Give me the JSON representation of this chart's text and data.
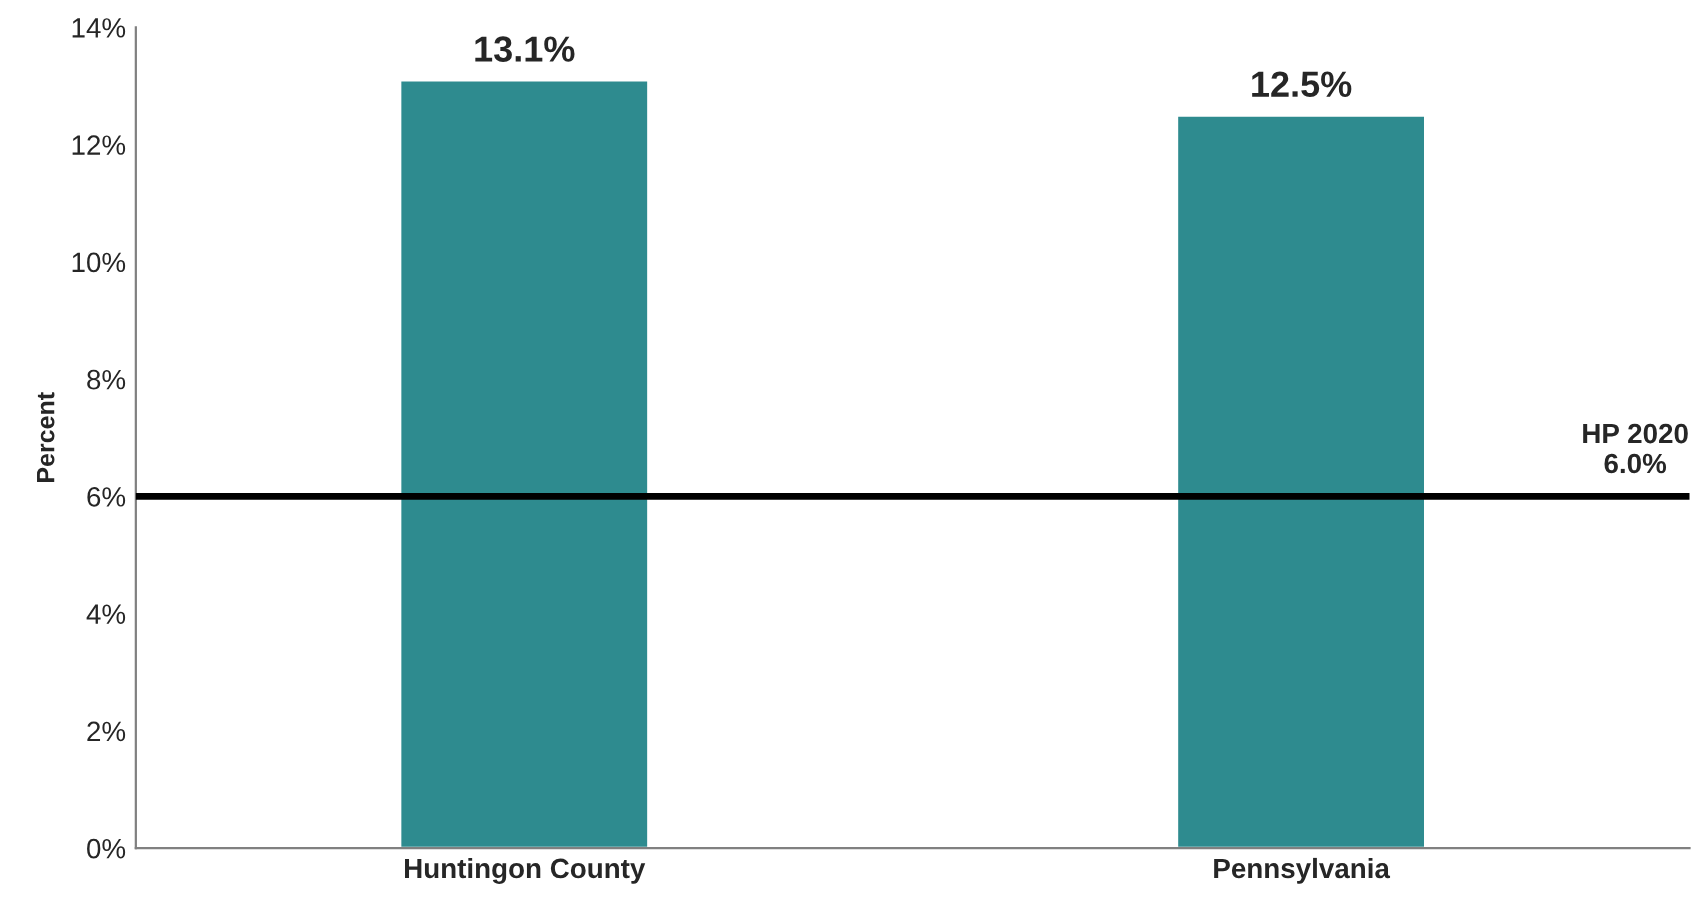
{
  "chart_data": {
    "type": "bar",
    "ylabel": "Percent",
    "categories": [
      "Huntingon County",
      "Pennsylvania"
    ],
    "values": [
      13.1,
      12.5
    ],
    "color": "#2e8b8f",
    "value_labels": [
      "13.1%",
      "12.5%"
    ],
    "ylim": [
      0,
      14
    ],
    "yticks": [
      {
        "value": 0,
        "label": "0%"
      },
      {
        "value": 2,
        "label": "2%"
      },
      {
        "value": 4,
        "label": "4%"
      },
      {
        "value": 6,
        "label": "6%"
      },
      {
        "value": 8,
        "label": "8%"
      },
      {
        "value": 10,
        "label": "10%"
      },
      {
        "value": 12,
        "label": "12%"
      },
      {
        "value": 14,
        "label": "14%"
      }
    ],
    "ref_lines": [
      {
        "axis": "y",
        "value": 6.0,
        "label": "HP 2020\n6.0%",
        "color": "#000000",
        "line_style": "solid"
      }
    ],
    "grid": false,
    "legend": false
  }
}
